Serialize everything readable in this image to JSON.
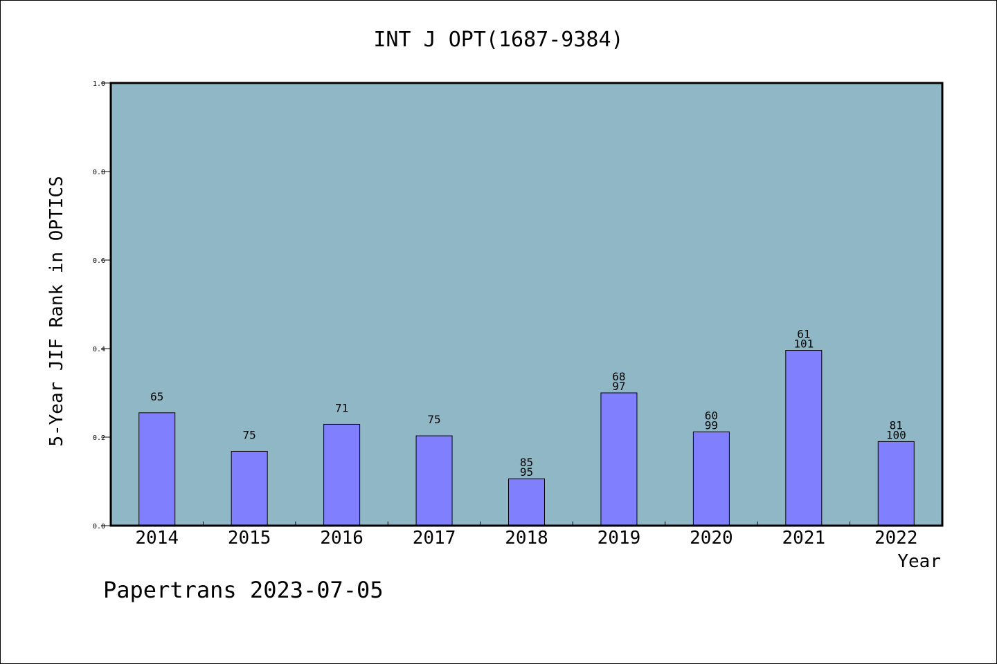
{
  "chart_data": {
    "type": "bar",
    "title": "INT J OPT(1687-9384)",
    "xlabel": "Year",
    "ylabel": "5-Year JIF Rank in OPTICS",
    "footer": "Papertrans 2023-07-05",
    "categories": [
      "2014",
      "2015",
      "2016",
      "2017",
      "2018",
      "2019",
      "2020",
      "2021",
      "2022"
    ],
    "values": [
      0.255,
      0.168,
      0.229,
      0.203,
      0.106,
      0.3,
      0.212,
      0.396,
      0.19
    ],
    "bar_labels": [
      [
        "65"
      ],
      [
        "75"
      ],
      [
        "71"
      ],
      [
        "75"
      ],
      [
        "85",
        "95"
      ],
      [
        "68",
        "97"
      ],
      [
        "60",
        "99"
      ],
      [
        "61",
        "101"
      ],
      [
        "81",
        "100"
      ]
    ],
    "ylim": [
      0,
      1.0
    ],
    "yticks": [
      "0.0",
      "0.2",
      "0.4",
      "0.6",
      "0.8",
      "1.0"
    ],
    "grid": false,
    "legend": "none",
    "colors": {
      "plot_background": "#8fb7c5",
      "bar_fill": "#8080ff",
      "bar_stroke": "#000000"
    }
  }
}
